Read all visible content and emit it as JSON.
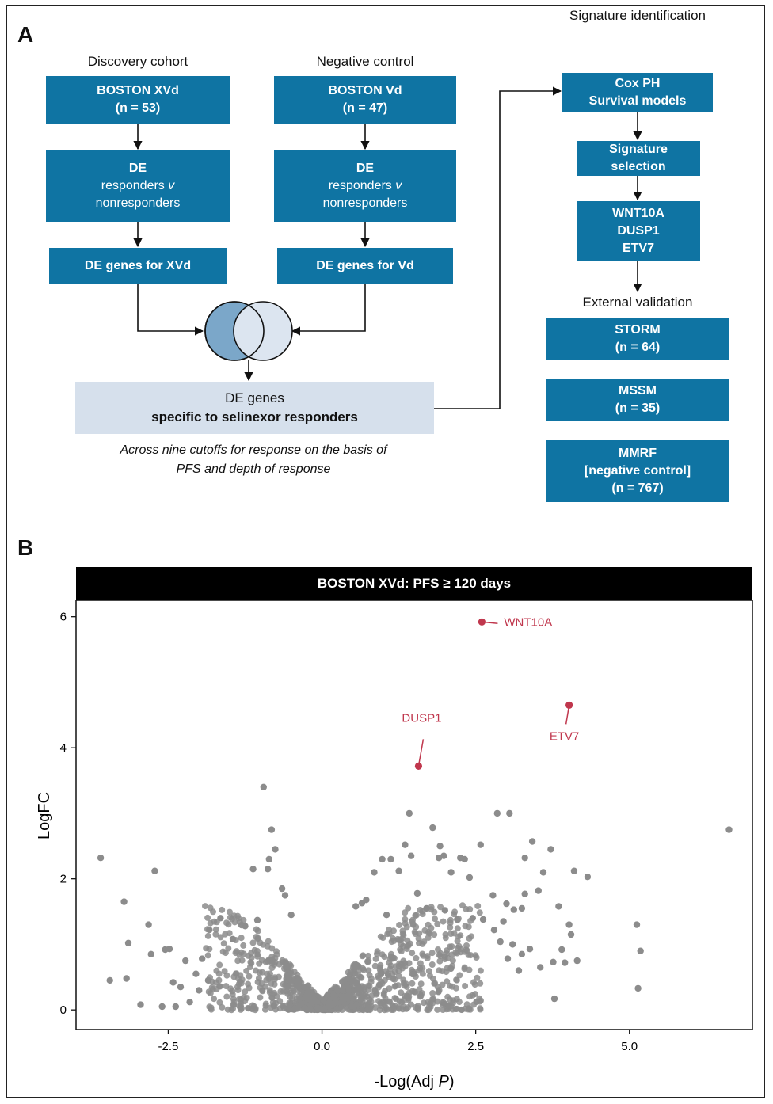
{
  "panelA": {
    "letter": "A",
    "discovery": {
      "header": "Discovery cohort",
      "box1": {
        "line1": "BOSTON XVd",
        "line2": "(n = 53)"
      },
      "box2": {
        "line1": "DE",
        "line2": "responders",
        "line2_italic": "v",
        "line3": "nonresponders"
      },
      "box3": "DE genes for XVd"
    },
    "negative": {
      "header": "Negative control",
      "box1": {
        "line1": "BOSTON Vd",
        "line2": "(n = 47)"
      },
      "box2": {
        "line1": "DE",
        "line2": "responders",
        "line2_italic": "v",
        "line3": "nonresponders"
      },
      "box3": "DE genes for Vd"
    },
    "overlap": {
      "line1": "DE genes",
      "line2": "specific to selinexor responders",
      "note_line1": "Across nine cutoffs for response on the basis of",
      "note_line2": "PFS and depth of response"
    },
    "signature": {
      "header": "Signature identification",
      "box1": {
        "line1": "Cox PH",
        "line2": "Survival models"
      },
      "box2": {
        "line1": "Signature",
        "line2": "selection"
      },
      "box3": {
        "line1": "WNT10A",
        "line2": "DUSP1",
        "line3": "ETV7"
      }
    },
    "validation": {
      "header": "External validation",
      "storm": {
        "line1": "STORM",
        "line2": "(n = 64)"
      },
      "mssm": {
        "line1": "MSSM",
        "line2": "(n = 35)"
      },
      "mmrf": {
        "line1": "MMRF",
        "line2": "[negative control]",
        "line3": "(n = 767)"
      }
    },
    "colors": {
      "box": "#0f74a3",
      "light": "#d6e0ec",
      "venn_left": "#7ba7c9",
      "venn_right": "#dce5f0"
    }
  },
  "panelB": {
    "letter": "B",
    "chart_data": {
      "type": "scatter",
      "title": "BOSTON XVd: PFS ≥ 120 days",
      "xlabel_prefix": "-Log(Adj ",
      "xlabel_italic": "P",
      "xlabel_suffix": ")",
      "ylabel": "LogFC",
      "xlim": [
        -4.0,
        7.0
      ],
      "ylim": [
        -0.3,
        6.25
      ],
      "xticks": [
        "-2.5",
        "0.0",
        "2.5",
        "5.0"
      ],
      "xtick_values": [
        -2.5,
        0.0,
        2.5,
        5.0
      ],
      "yticks": [
        "0",
        "2",
        "4",
        "6"
      ],
      "ytick_values": [
        0,
        2,
        4,
        6
      ],
      "point_color": "#8c8c8c",
      "highlight_color": "#c0374d",
      "highlighted": [
        {
          "gene": "WNT10A",
          "x": 2.6,
          "y": 5.92
        },
        {
          "gene": "ETV7",
          "x": 4.02,
          "y": 4.65
        },
        {
          "gene": "DUSP1",
          "x": 1.57,
          "y": 3.72
        }
      ],
      "outliers": [
        [
          -3.6,
          2.32
        ],
        [
          -3.45,
          0.45
        ],
        [
          -3.22,
          1.65
        ],
        [
          -3.15,
          1.02
        ],
        [
          -3.18,
          0.48
        ],
        [
          -2.95,
          0.08
        ],
        [
          -2.82,
          1.3
        ],
        [
          -2.72,
          2.12
        ],
        [
          -2.78,
          0.85
        ],
        [
          -2.55,
          0.92
        ],
        [
          -2.48,
          0.93
        ],
        [
          -2.42,
          0.42
        ],
        [
          -0.95,
          3.4
        ],
        [
          -0.82,
          2.75
        ],
        [
          -0.76,
          2.45
        ],
        [
          -0.86,
          2.3
        ],
        [
          -0.88,
          2.15
        ],
        [
          -1.12,
          2.15
        ],
        [
          1.42,
          3.0
        ],
        [
          2.58,
          2.52
        ],
        [
          2.85,
          3.0
        ],
        [
          3.05,
          3.0
        ],
        [
          3.3,
          2.32
        ],
        [
          3.6,
          2.1
        ],
        [
          3.42,
          2.57
        ],
        [
          3.72,
          2.45
        ],
        [
          4.1,
          2.12
        ],
        [
          4.32,
          2.03
        ],
        [
          3.85,
          1.58
        ],
        [
          3.3,
          1.77
        ],
        [
          3.52,
          1.82
        ],
        [
          4.02,
          1.3
        ],
        [
          4.05,
          1.15
        ],
        [
          3.9,
          0.92
        ],
        [
          3.38,
          0.93
        ],
        [
          3.95,
          0.72
        ],
        [
          3.76,
          0.73
        ],
        [
          4.15,
          0.75
        ],
        [
          3.2,
          0.6
        ],
        [
          3.55,
          0.65
        ],
        [
          3.78,
          0.17
        ],
        [
          5.12,
          1.3
        ],
        [
          5.18,
          0.9
        ],
        [
          5.14,
          0.33
        ],
        [
          6.62,
          2.75
        ],
        [
          1.9,
          2.32
        ],
        [
          1.98,
          2.35
        ],
        [
          2.25,
          2.32
        ],
        [
          2.32,
          2.3
        ],
        [
          1.8,
          2.78
        ],
        [
          1.92,
          2.5
        ],
        [
          1.35,
          2.52
        ],
        [
          1.45,
          2.35
        ],
        [
          1.12,
          2.3
        ],
        [
          0.98,
          2.3
        ],
        [
          1.25,
          2.12
        ],
        [
          0.85,
          2.1
        ],
        [
          2.1,
          2.1
        ],
        [
          2.4,
          2.02
        ],
        [
          2.78,
          1.75
        ],
        [
          3.0,
          1.62
        ],
        [
          3.12,
          1.53
        ],
        [
          2.95,
          1.35
        ],
        [
          2.8,
          1.22
        ],
        [
          3.25,
          1.55
        ],
        [
          -1.65,
          1.4
        ],
        [
          -1.95,
          0.78
        ],
        [
          -2.22,
          0.75
        ],
        [
          -2.05,
          0.55
        ],
        [
          -2.3,
          0.35
        ],
        [
          -2.0,
          0.3
        ],
        [
          -1.85,
          0.45
        ],
        [
          -2.15,
          0.12
        ],
        [
          -2.38,
          0.05
        ],
        [
          -2.6,
          0.05
        ],
        [
          -1.45,
          1.08
        ],
        [
          -1.25,
          1.28
        ],
        [
          -1.05,
          1.37
        ],
        [
          -0.65,
          1.85
        ],
        [
          -0.6,
          1.75
        ],
        [
          -0.5,
          1.45
        ],
        [
          0.65,
          1.63
        ],
        [
          0.72,
          1.68
        ],
        [
          0.55,
          1.58
        ],
        [
          1.05,
          1.45
        ],
        [
          1.55,
          1.78
        ],
        [
          1.7,
          1.55
        ],
        [
          2.0,
          1.52
        ],
        [
          2.2,
          1.38
        ],
        [
          2.45,
          1.4
        ],
        [
          2.62,
          1.38
        ],
        [
          2.9,
          1.04
        ],
        [
          3.1,
          1.0
        ],
        [
          3.02,
          0.78
        ],
        [
          3.25,
          0.85
        ]
      ]
    }
  }
}
